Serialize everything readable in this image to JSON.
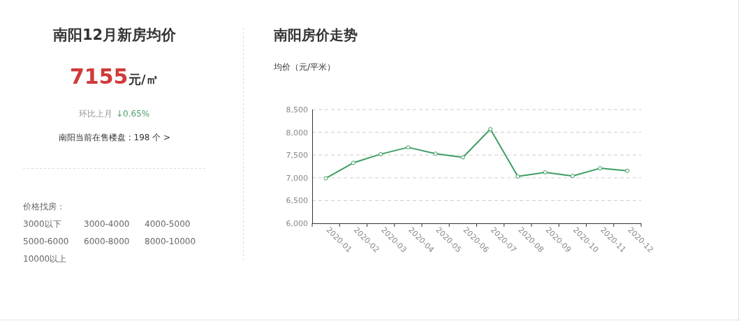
{
  "chart_data": [
    {
      "type": "other",
      "title": "南阳12月新房均价",
      "annotations": [
        "7155",
        "元/㎡",
        "环比上月",
        "↓0.65%",
        "南阳当前在售楼盘 : 198 个 >",
        "价格找房：",
        "3000以下",
        "3000-4000",
        "4000-5000",
        "5000-6000",
        "6000-8000",
        "8000-10000",
        "10000以上"
      ]
    },
    {
      "type": "line",
      "title": "南阳房价走势",
      "ylabel": "均价（元/平米）",
      "categories": [
        "2020-01",
        "2020-02",
        "2020-03",
        "2020-04",
        "2020-05",
        "2020-06",
        "2020-07",
        "2020-08",
        "2020-09",
        "2020-10",
        "2020-11",
        "2020-12"
      ],
      "series": [
        {
          "color": "#3d9e64",
          "values": [
            6990,
            7330,
            7520,
            7670,
            7530,
            7450,
            8070,
            7030,
            7120,
            7040,
            7210,
            7155
          ]
        }
      ],
      "ylim": [
        6000,
        8500
      ],
      "yticks": [
        {
          "value": 6000,
          "label": "6,000"
        },
        {
          "value": 6500,
          "label": "6,500"
        },
        {
          "value": 7000,
          "label": "7,000"
        },
        {
          "value": 7500,
          "label": "7,500"
        },
        {
          "value": 8000,
          "label": "8,000"
        },
        {
          "value": 8500,
          "label": "8,500"
        }
      ],
      "grid": "y",
      "marker": "circle"
    }
  ]
}
